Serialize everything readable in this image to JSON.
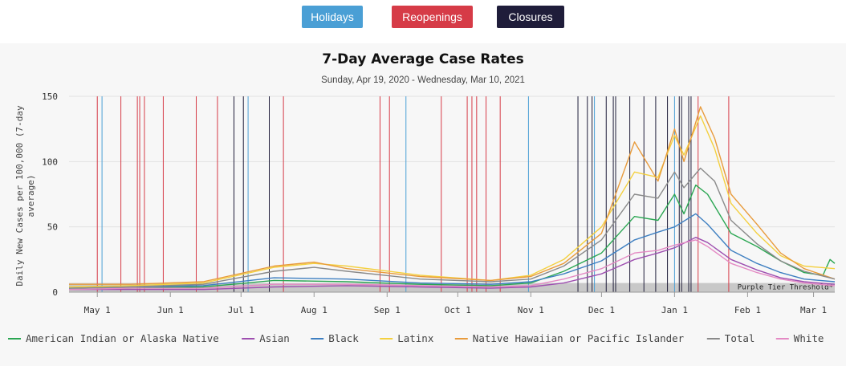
{
  "buttons": {
    "holidays": {
      "label": "Holidays",
      "color": "#4a9fd5"
    },
    "reopenings": {
      "label": "Reopenings",
      "color": "#d63b47"
    },
    "closures": {
      "label": "Closures",
      "color": "#1f1d3a"
    }
  },
  "chart_data": {
    "type": "line",
    "title": "7-Day Average Case Rates",
    "subtitle": "Sunday, Apr 19, 2020 - Wednesday, Mar 10, 2021",
    "ylabel": "Daily New Cases per 100,000 (7-day average)",
    "xlabel": "",
    "x_range": [
      "2020-04-19",
      "2021-03-10"
    ],
    "ylim": [
      0,
      150
    ],
    "y_ticks": [
      0,
      50,
      100,
      150
    ],
    "x_ticks": [
      {
        "date": "2020-05-01",
        "label": "May 1"
      },
      {
        "date": "2020-06-01",
        "label": "Jun 1"
      },
      {
        "date": "2020-07-01",
        "label": "Jul 1"
      },
      {
        "date": "2020-08-01",
        "label": "Aug 1"
      },
      {
        "date": "2020-09-01",
        "label": "Sep 1"
      },
      {
        "date": "2020-10-01",
        "label": "Oct 1"
      },
      {
        "date": "2020-11-01",
        "label": "Nov 1"
      },
      {
        "date": "2020-12-01",
        "label": "Dec 1"
      },
      {
        "date": "2021-01-01",
        "label": "Jan 1"
      },
      {
        "date": "2021-02-01",
        "label": "Feb 1"
      },
      {
        "date": "2021-03-01",
        "label": "Mar 1"
      }
    ],
    "grid": true,
    "legend_position": "bottom",
    "threshold": {
      "label": "Purple Tier Threshold*",
      "value": 7,
      "color": "#c8c8c8"
    },
    "event_lines": {
      "reopenings": [
        "2020-05-01",
        "2020-05-11",
        "2020-05-18",
        "2020-05-19",
        "2020-05-21",
        "2020-05-29",
        "2020-06-12",
        "2020-06-21",
        "2020-07-19",
        "2020-08-29",
        "2020-09-02",
        "2020-09-24",
        "2020-10-05",
        "2020-10-07",
        "2020-10-09",
        "2020-10-13",
        "2020-10-19",
        "2021-01-11",
        "2021-01-24"
      ],
      "holidays": [
        "2020-05-03",
        "2020-07-04",
        "2020-09-09",
        "2020-10-31",
        "2020-11-28",
        "2021-01-01"
      ],
      "closures": [
        "2020-06-28",
        "2020-07-02",
        "2020-07-13",
        "2020-11-21",
        "2020-11-25",
        "2020-11-27",
        "2020-12-03",
        "2020-12-06",
        "2020-12-07",
        "2020-12-13",
        "2020-12-19",
        "2020-12-24",
        "2020-12-29",
        "2021-01-03",
        "2021-01-04",
        "2021-01-07",
        "2021-01-08"
      ]
    },
    "series": [
      {
        "name": "American Indian or Alaska Native",
        "color": "#2aa652",
        "points": [
          [
            "2020-04-19",
            2
          ],
          [
            "2020-05-15",
            3
          ],
          [
            "2020-06-15",
            4
          ],
          [
            "2020-07-15",
            9
          ],
          [
            "2020-08-15",
            8
          ],
          [
            "2020-09-15",
            6
          ],
          [
            "2020-10-15",
            5
          ],
          [
            "2020-11-01",
            7
          ],
          [
            "2020-11-15",
            16
          ],
          [
            "2020-12-01",
            30
          ],
          [
            "2020-12-15",
            58
          ],
          [
            "2020-12-25",
            55
          ],
          [
            "2021-01-01",
            75
          ],
          [
            "2021-01-05",
            60
          ],
          [
            "2021-01-10",
            82
          ],
          [
            "2021-01-15",
            75
          ],
          [
            "2021-01-25",
            45
          ],
          [
            "2021-02-05",
            35
          ],
          [
            "2021-02-15",
            24
          ],
          [
            "2021-02-25",
            15
          ],
          [
            "2021-03-05",
            13
          ],
          [
            "2021-03-08",
            25
          ],
          [
            "2021-03-10",
            22
          ]
        ]
      },
      {
        "name": "Asian",
        "color": "#9e4fb0",
        "points": [
          [
            "2020-04-19",
            2
          ],
          [
            "2020-05-15",
            2
          ],
          [
            "2020-06-15",
            2
          ],
          [
            "2020-07-15",
            4
          ],
          [
            "2020-08-15",
            5
          ],
          [
            "2020-09-15",
            4
          ],
          [
            "2020-10-15",
            3
          ],
          [
            "2020-11-01",
            4
          ],
          [
            "2020-11-15",
            7
          ],
          [
            "2020-12-01",
            14
          ],
          [
            "2020-12-15",
            25
          ],
          [
            "2020-12-25",
            30
          ],
          [
            "2021-01-01",
            34
          ],
          [
            "2021-01-10",
            42
          ],
          [
            "2021-01-15",
            38
          ],
          [
            "2021-01-25",
            25
          ],
          [
            "2021-02-05",
            17
          ],
          [
            "2021-02-15",
            11
          ],
          [
            "2021-02-25",
            8
          ],
          [
            "2021-03-10",
            6
          ]
        ]
      },
      {
        "name": "Black",
        "color": "#3e7fc1",
        "points": [
          [
            "2020-04-19",
            3
          ],
          [
            "2020-05-15",
            4
          ],
          [
            "2020-06-15",
            5
          ],
          [
            "2020-07-15",
            11
          ],
          [
            "2020-08-15",
            10
          ],
          [
            "2020-09-15",
            7
          ],
          [
            "2020-10-15",
            6
          ],
          [
            "2020-11-01",
            8
          ],
          [
            "2020-11-15",
            14
          ],
          [
            "2020-12-01",
            24
          ],
          [
            "2020-12-15",
            40
          ],
          [
            "2020-12-25",
            46
          ],
          [
            "2021-01-01",
            50
          ],
          [
            "2021-01-10",
            60
          ],
          [
            "2021-01-15",
            52
          ],
          [
            "2021-01-25",
            32
          ],
          [
            "2021-02-05",
            22
          ],
          [
            "2021-02-15",
            15
          ],
          [
            "2021-02-25",
            10
          ],
          [
            "2021-03-10",
            8
          ]
        ]
      },
      {
        "name": "Latinx",
        "color": "#f4d03f",
        "points": [
          [
            "2020-04-19",
            4
          ],
          [
            "2020-05-15",
            5
          ],
          [
            "2020-06-15",
            7
          ],
          [
            "2020-07-15",
            19
          ],
          [
            "2020-08-01",
            22
          ],
          [
            "2020-08-15",
            20
          ],
          [
            "2020-09-15",
            13
          ],
          [
            "2020-10-15",
            9
          ],
          [
            "2020-11-01",
            13
          ],
          [
            "2020-11-15",
            25
          ],
          [
            "2020-12-01",
            50
          ],
          [
            "2020-12-15",
            92
          ],
          [
            "2020-12-25",
            88
          ],
          [
            "2021-01-01",
            120
          ],
          [
            "2021-01-05",
            105
          ],
          [
            "2021-01-12",
            135
          ],
          [
            "2021-01-18",
            110
          ],
          [
            "2021-01-25",
            68
          ],
          [
            "2021-02-05",
            45
          ],
          [
            "2021-02-15",
            28
          ],
          [
            "2021-02-25",
            20
          ],
          [
            "2021-03-10",
            18
          ]
        ]
      },
      {
        "name": "Native Hawaiian or Pacific Islander",
        "color": "#e89b3c",
        "points": [
          [
            "2020-04-19",
            6
          ],
          [
            "2020-05-15",
            6
          ],
          [
            "2020-06-15",
            8
          ],
          [
            "2020-07-15",
            20
          ],
          [
            "2020-08-01",
            23
          ],
          [
            "2020-08-15",
            18
          ],
          [
            "2020-09-15",
            12
          ],
          [
            "2020-10-15",
            9
          ],
          [
            "2020-11-01",
            12
          ],
          [
            "2020-11-15",
            22
          ],
          [
            "2020-12-01",
            45
          ],
          [
            "2020-12-15",
            115
          ],
          [
            "2020-12-25",
            85
          ],
          [
            "2021-01-01",
            125
          ],
          [
            "2021-01-05",
            100
          ],
          [
            "2021-01-12",
            142
          ],
          [
            "2021-01-18",
            118
          ],
          [
            "2021-01-25",
            75
          ],
          [
            "2021-02-05",
            52
          ],
          [
            "2021-02-15",
            30
          ],
          [
            "2021-02-25",
            18
          ],
          [
            "2021-03-10",
            10
          ]
        ]
      },
      {
        "name": "Total",
        "color": "#8a8a8a",
        "points": [
          [
            "2020-04-19",
            3
          ],
          [
            "2020-05-15",
            4
          ],
          [
            "2020-06-15",
            6
          ],
          [
            "2020-07-15",
            16
          ],
          [
            "2020-08-01",
            19
          ],
          [
            "2020-08-15",
            16
          ],
          [
            "2020-09-15",
            10
          ],
          [
            "2020-10-15",
            8
          ],
          [
            "2020-11-01",
            10
          ],
          [
            "2020-11-15",
            20
          ],
          [
            "2020-12-01",
            40
          ],
          [
            "2020-12-15",
            75
          ],
          [
            "2020-12-25",
            72
          ],
          [
            "2021-01-01",
            92
          ],
          [
            "2021-01-05",
            80
          ],
          [
            "2021-01-12",
            95
          ],
          [
            "2021-01-18",
            85
          ],
          [
            "2021-01-25",
            55
          ],
          [
            "2021-02-05",
            37
          ],
          [
            "2021-02-15",
            24
          ],
          [
            "2021-02-25",
            16
          ],
          [
            "2021-03-10",
            10
          ]
        ]
      },
      {
        "name": "White",
        "color": "#e48ac4",
        "points": [
          [
            "2020-04-19",
            2
          ],
          [
            "2020-05-15",
            3
          ],
          [
            "2020-06-15",
            3
          ],
          [
            "2020-07-15",
            6
          ],
          [
            "2020-08-15",
            6
          ],
          [
            "2020-09-15",
            5
          ],
          [
            "2020-10-15",
            4
          ],
          [
            "2020-11-01",
            5
          ],
          [
            "2020-11-15",
            10
          ],
          [
            "2020-12-01",
            18
          ],
          [
            "2020-12-15",
            30
          ],
          [
            "2020-12-25",
            32
          ],
          [
            "2021-01-01",
            36
          ],
          [
            "2021-01-10",
            40
          ],
          [
            "2021-01-15",
            35
          ],
          [
            "2021-01-25",
            22
          ],
          [
            "2021-02-05",
            15
          ],
          [
            "2021-02-15",
            10
          ],
          [
            "2021-02-25",
            7
          ],
          [
            "2021-03-10",
            5
          ]
        ]
      }
    ]
  }
}
